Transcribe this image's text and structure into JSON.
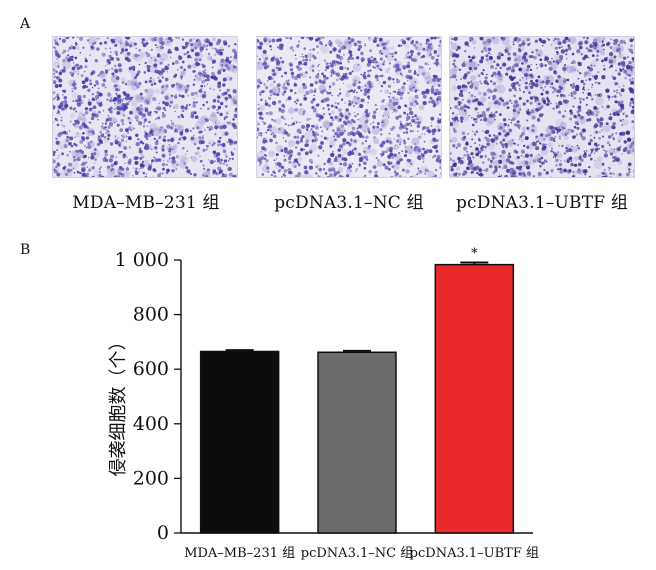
{
  "panel_a": {
    "letter": "A",
    "images": [
      {
        "label": "MDA–MB–231 组",
        "stain_color": "#4a3fa8",
        "background": "#e9e6f3"
      },
      {
        "label": "pcDNA3.1–NC 组",
        "stain_color": "#5246ad",
        "background": "#ebe9f4"
      },
      {
        "label": "pcDNA3.1–UBTF 组",
        "stain_color": "#3f3597",
        "background": "#e6e2f1"
      }
    ]
  },
  "panel_b": {
    "letter": "B"
  },
  "chart_data": {
    "type": "bar",
    "categories": [
      "MDA–MB–231 组",
      "pcDNA3.1–NC 组",
      "pcDNA3.1–UBTF 组"
    ],
    "values": [
      665,
      662,
      983
    ],
    "errors": [
      5,
      5,
      8
    ],
    "colors": [
      "#0d0d0d",
      "#6b6b6b",
      "#ea2a2a"
    ],
    "annotations": [
      "",
      "",
      "*"
    ],
    "ylabel": "侵袭细胞数（个）",
    "ylim": [
      0,
      1000
    ],
    "yticks": [
      0,
      200,
      400,
      600,
      800,
      1000
    ],
    "ytick_labels": [
      "0",
      "200",
      "400",
      "600",
      "800",
      "1 000"
    ],
    "grid": false
  }
}
